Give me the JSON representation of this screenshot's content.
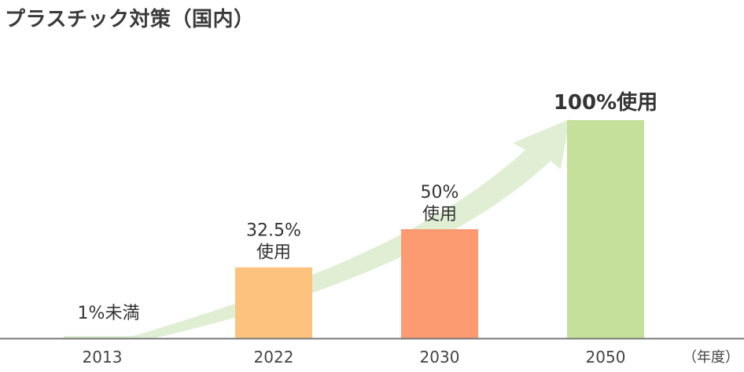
{
  "title": "プラスチック対策（国内）",
  "chart_data": {
    "type": "bar",
    "title": "プラスチック対策（国内）",
    "categories": [
      "2013",
      "2022",
      "2030",
      "2050"
    ],
    "values": [
      1,
      32.5,
      50,
      100
    ],
    "labels": [
      {
        "value": "1%",
        "suffix": "未満",
        "bold": false
      },
      {
        "value": "32.5%",
        "suffix": "使用",
        "bold": false
      },
      {
        "value": "50%",
        "suffix": "使用",
        "bold": false
      },
      {
        "value": "100%",
        "suffix": "使用",
        "bold": true
      }
    ],
    "colors": [
      "#dcecd0",
      "#fcc27e",
      "#fc9a72",
      "#c4e09a"
    ],
    "trend_arrow_color": "#e0efd4",
    "axis_color": "#777777",
    "xlabel": "（年度）",
    "ylabel": "",
    "ylim": [
      0,
      100
    ],
    "grid": false,
    "legend": "none"
  }
}
